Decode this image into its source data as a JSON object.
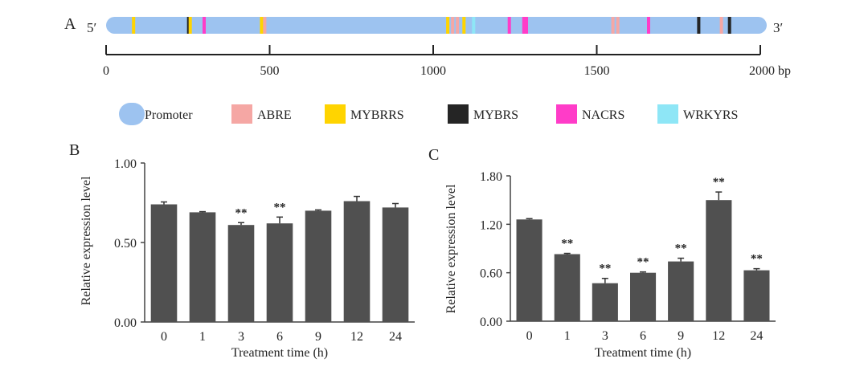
{
  "panel_a": {
    "label": "A",
    "five_prime": "5′",
    "three_prime": "3′",
    "axis_unit": "2000 bp",
    "ticks": [
      "0",
      "500",
      "1000",
      "1500"
    ],
    "tick_values": [
      0,
      500,
      1000,
      1500,
      2000
    ],
    "length_bp": 2000,
    "elements": [
      {
        "type": "MYBRRS",
        "pos": 65
      },
      {
        "type": "MYBRS",
        "pos": 235
      },
      {
        "type": "MYBRRS",
        "pos": 240
      },
      {
        "type": "NACRS",
        "pos": 283
      },
      {
        "type": "MYBRRS",
        "pos": 460
      },
      {
        "type": "ABRE",
        "pos": 470
      },
      {
        "type": "MYBRRS",
        "pos": 1035
      },
      {
        "type": "ABRE",
        "pos": 1050
      },
      {
        "type": "ABRE",
        "pos": 1065
      },
      {
        "type": "MYBRRS",
        "pos": 1085
      },
      {
        "type": "WRKYRS",
        "pos": 1115
      },
      {
        "type": "NACRS",
        "pos": 1225
      },
      {
        "type": "NACRS",
        "pos": 1270
      },
      {
        "type": "NACRS",
        "pos": 1278
      },
      {
        "type": "ABRE",
        "pos": 1545
      },
      {
        "type": "ABRE",
        "pos": 1560
      },
      {
        "type": "NACRS",
        "pos": 1655
      },
      {
        "type": "MYBRS",
        "pos": 1810
      },
      {
        "type": "ABRE",
        "pos": 1880
      },
      {
        "type": "MYBRS",
        "pos": 1905
      }
    ],
    "legend": [
      {
        "key": "Promoter",
        "label": "Promoter",
        "color": "#9dc3f0"
      },
      {
        "key": "ABRE",
        "label": "ABRE",
        "color": "#f5a7a4"
      },
      {
        "key": "MYBRRS",
        "label": "MYBRRS",
        "color": "#ffd400"
      },
      {
        "key": "MYBRS",
        "label": "MYBRS",
        "color": "#252525"
      },
      {
        "key": "NACRS",
        "label": "NACRS",
        "color": "#ff3cc8"
      },
      {
        "key": "WRKYRS",
        "label": "WRKYRS",
        "color": "#8ee6f6"
      }
    ]
  },
  "chart_data": [
    {
      "panel": "B",
      "type": "bar",
      "categories": [
        "0",
        "1",
        "3",
        "6",
        "9",
        "12",
        "24"
      ],
      "values": [
        0.74,
        0.69,
        0.61,
        0.62,
        0.7,
        0.76,
        0.72
      ],
      "errors": [
        0.015,
        0.004,
        0.015,
        0.04,
        0.005,
        0.03,
        0.025
      ],
      "significance": [
        "",
        "",
        "**",
        "**",
        "",
        "",
        ""
      ],
      "xlabel": "Treatment time (h)",
      "ylabel": "Relative expression level",
      "ylim": [
        0,
        1.0
      ],
      "yticks": [
        "0.00",
        "0.50",
        "1.00"
      ],
      "ytick_values": [
        0,
        0.5,
        1.0
      ],
      "bar_color": "#505050"
    },
    {
      "panel": "C",
      "type": "bar",
      "categories": [
        "0",
        "1",
        "3",
        "6",
        "9",
        "12",
        "24"
      ],
      "values": [
        1.26,
        0.83,
        0.47,
        0.6,
        0.74,
        1.5,
        0.63
      ],
      "errors": [
        0.01,
        0.01,
        0.06,
        0.01,
        0.04,
        0.1,
        0.02
      ],
      "significance": [
        "",
        "**",
        "**",
        "**",
        "**",
        "**",
        "**"
      ],
      "xlabel": "Treatment time (h)",
      "ylabel": "Relative expression level",
      "ylim": [
        0,
        1.8
      ],
      "yticks": [
        "0.00",
        "0.60",
        "1.20",
        "1.80"
      ],
      "ytick_values": [
        0,
        0.6,
        1.2,
        1.8
      ],
      "bar_color": "#505050"
    }
  ]
}
